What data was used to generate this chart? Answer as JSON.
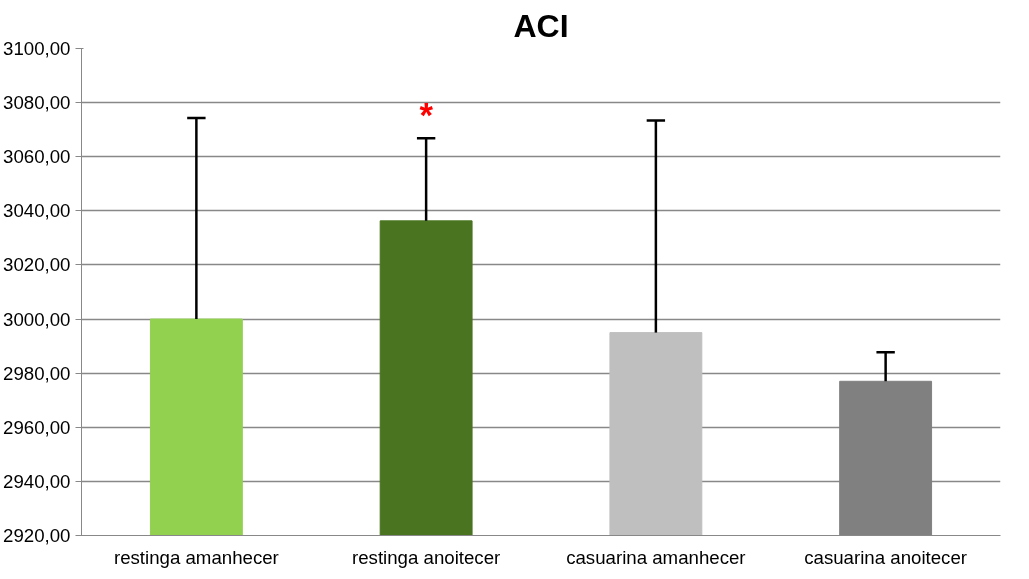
{
  "chart_data": {
    "type": "bar",
    "title": "ACI",
    "categories": [
      "restinga amanhecer",
      "restinga anoitecer",
      "casuarina amanhecer",
      "casuarina anoitecer"
    ],
    "values": [
      3000,
      3036.3,
      2995,
      2977
    ],
    "colors": [
      "#92d050",
      "#4a7420",
      "#bfbfbf",
      "#808080"
    ],
    "errors": [
      [
        3000,
        3074.3
      ],
      [
        3036.3,
        3066.8
      ],
      [
        2995,
        3073.4
      ],
      [
        2977,
        2987.7
      ]
    ],
    "ylim": [
      2920,
      3100
    ],
    "yticks": [
      {
        "value": 2920,
        "label": "2920,00"
      },
      {
        "value": 2940,
        "label": "2940,00"
      },
      {
        "value": 2960,
        "label": "2960,00"
      },
      {
        "value": 2980,
        "label": "2980,00"
      },
      {
        "value": 3000,
        "label": "3000,00"
      },
      {
        "value": 3020,
        "label": "3020,00"
      },
      {
        "value": 3040,
        "label": "3040,00"
      },
      {
        "value": 3060,
        "label": "3060,00"
      },
      {
        "value": 3080,
        "label": "3080,00"
      },
      {
        "value": 3100,
        "label": "3100,00"
      }
    ],
    "grid": "y",
    "annotations": [
      "*"
    ]
  }
}
